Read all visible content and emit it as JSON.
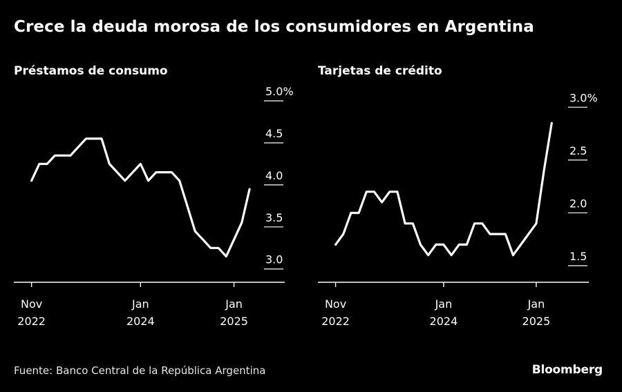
{
  "title": "Crece la deuda morosa de los consumidores en Argentina",
  "source": "Fuente: Banco Central de la República Argentina",
  "brand": "Bloomberg",
  "colors": {
    "background": "#000000",
    "line": "#ffffff",
    "axis": "#ffffff"
  },
  "chart_data": [
    {
      "type": "line",
      "title": "Préstamos de consumo",
      "xlabel": "",
      "ylabel": "",
      "x_ticks": [
        {
          "month_index": 0,
          "line1": "Nov",
          "line2": "2022"
        },
        {
          "month_index": 14,
          "line1": "Jan",
          "line2": "2024"
        },
        {
          "month_index": 26,
          "line1": "Jan",
          "line2": "2025"
        }
      ],
      "y_ticks": [
        {
          "value": 3.0,
          "label": "3.0"
        },
        {
          "value": 3.5,
          "label": "3.5"
        },
        {
          "value": 4.0,
          "label": "4.0"
        },
        {
          "value": 4.5,
          "label": "4.5"
        },
        {
          "value": 5.0,
          "label": "5.0%"
        }
      ],
      "ylim": [
        2.85,
        5.05
      ],
      "xlim": [
        -0.5,
        29.5
      ],
      "series": [
        {
          "name": "Préstamos de consumo",
          "x": [
            0,
            1,
            2,
            3,
            4,
            5,
            6,
            7,
            8,
            9,
            10,
            11,
            12,
            13,
            14,
            15,
            16,
            17,
            18,
            19,
            20,
            21,
            22,
            23,
            24,
            25,
            26,
            27,
            28
          ],
          "values": [
            4.05,
            4.25,
            4.25,
            4.35,
            4.35,
            4.35,
            4.45,
            4.55,
            4.55,
            4.55,
            4.25,
            4.15,
            4.05,
            4.15,
            4.25,
            4.05,
            4.15,
            4.15,
            4.15,
            4.05,
            3.75,
            3.45,
            3.35,
            3.25,
            3.25,
            3.15,
            3.35,
            3.55,
            3.95
          ]
        }
      ]
    },
    {
      "type": "line",
      "title": "Tarjetas de crédito",
      "xlabel": "",
      "ylabel": "",
      "x_ticks": [
        {
          "month_index": 0,
          "line1": "Nov",
          "line2": "2022"
        },
        {
          "month_index": 14,
          "line1": "Jan",
          "line2": "2024"
        },
        {
          "month_index": 26,
          "line1": "Jan",
          "line2": "2025"
        }
      ],
      "y_ticks": [
        {
          "value": 1.5,
          "label": "1.5"
        },
        {
          "value": 2.0,
          "label": "2.0"
        },
        {
          "value": 2.5,
          "label": "2.5"
        },
        {
          "value": 3.0,
          "label": "3.0%"
        }
      ],
      "ylim": [
        1.35,
        3.1
      ],
      "xlim": [
        -0.5,
        29.5
      ],
      "series": [
        {
          "name": "Tarjetas de crédito",
          "x": [
            0,
            1,
            2,
            3,
            4,
            5,
            6,
            7,
            8,
            9,
            10,
            11,
            12,
            13,
            14,
            15,
            16,
            17,
            18,
            19,
            20,
            21,
            22,
            23,
            24,
            25,
            26,
            27,
            28
          ],
          "values": [
            1.7,
            1.8,
            2.0,
            2.0,
            2.2,
            2.2,
            2.1,
            2.2,
            2.2,
            1.9,
            1.9,
            1.7,
            1.6,
            1.7,
            1.7,
            1.6,
            1.7,
            1.7,
            1.9,
            1.9,
            1.8,
            1.8,
            1.8,
            1.6,
            1.7,
            1.8,
            1.9,
            2.4,
            2.85
          ]
        }
      ]
    }
  ]
}
